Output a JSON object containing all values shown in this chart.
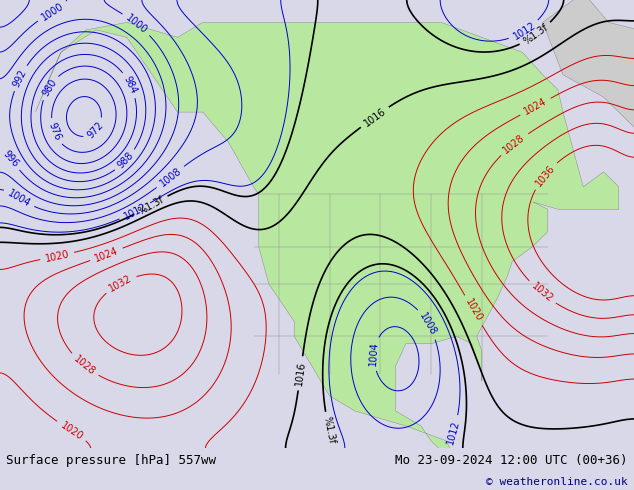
{
  "title_left": "Surface pressure [hPa] 557ww",
  "title_right": "Mo 23-09-2024 12:00 UTC (00+36)",
  "copyright": "© weatheronline.co.uk",
  "bg_color": "#d8d8e8",
  "land_color": "#b8e8a0",
  "ocean_color": "#d8d8e8",
  "footer_bg": "#c8c8d8",
  "footer_text_color": "#000000",
  "copyright_color": "#00008b",
  "contour_black_color": "#000000",
  "contour_blue_color": "#0000cc",
  "contour_red_color": "#cc0000",
  "label_fontsize": 7,
  "footer_fontsize": 9,
  "map_extent": [
    -175,
    -50,
    15,
    75
  ]
}
